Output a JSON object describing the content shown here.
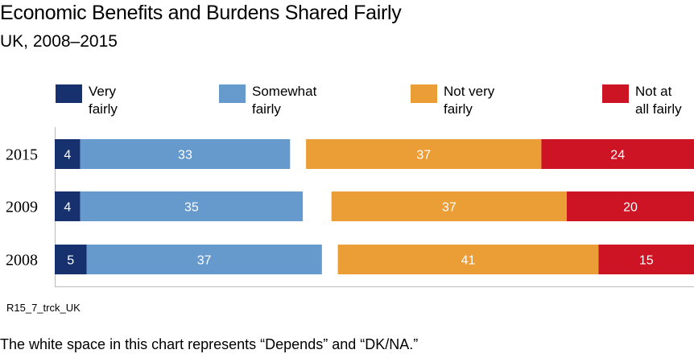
{
  "title": "Economic Benefits and Burdens Shared Fairly",
  "subtitle": "UK, 2008–2015",
  "source_code": "R15_7_trck_UK",
  "footnote": "The white space in this chart represents “Depends” and “DK/NA.”",
  "colors": {
    "very_fairly": "#17306e",
    "somewhat_fairly": "#6699cc",
    "not_very_fairly": "#eb9d36",
    "not_at_all_fairly": "#cc1424"
  },
  "chart_data": {
    "type": "bar",
    "orientation": "horizontal",
    "stacked": "diverging",
    "categories": [
      "2015",
      "2009",
      "2008"
    ],
    "legend_placement": "top",
    "series": [
      {
        "name": "Very fairly",
        "legend_lines": [
          "Very",
          "fairly"
        ],
        "side": "left",
        "values": [
          4,
          4,
          5
        ]
      },
      {
        "name": "Somewhat fairly",
        "legend_lines": [
          "Somewhat",
          "fairly"
        ],
        "side": "left",
        "values": [
          33,
          35,
          37
        ]
      },
      {
        "name": "Not very fairly",
        "legend_lines": [
          "Not very",
          "fairly"
        ],
        "side": "right",
        "values": [
          37,
          37,
          41
        ]
      },
      {
        "name": "Not at all fairly",
        "legend_lines": [
          "Not at",
          "all fairly"
        ],
        "side": "right",
        "values": [
          24,
          20,
          15
        ]
      }
    ],
    "grid": false
  }
}
